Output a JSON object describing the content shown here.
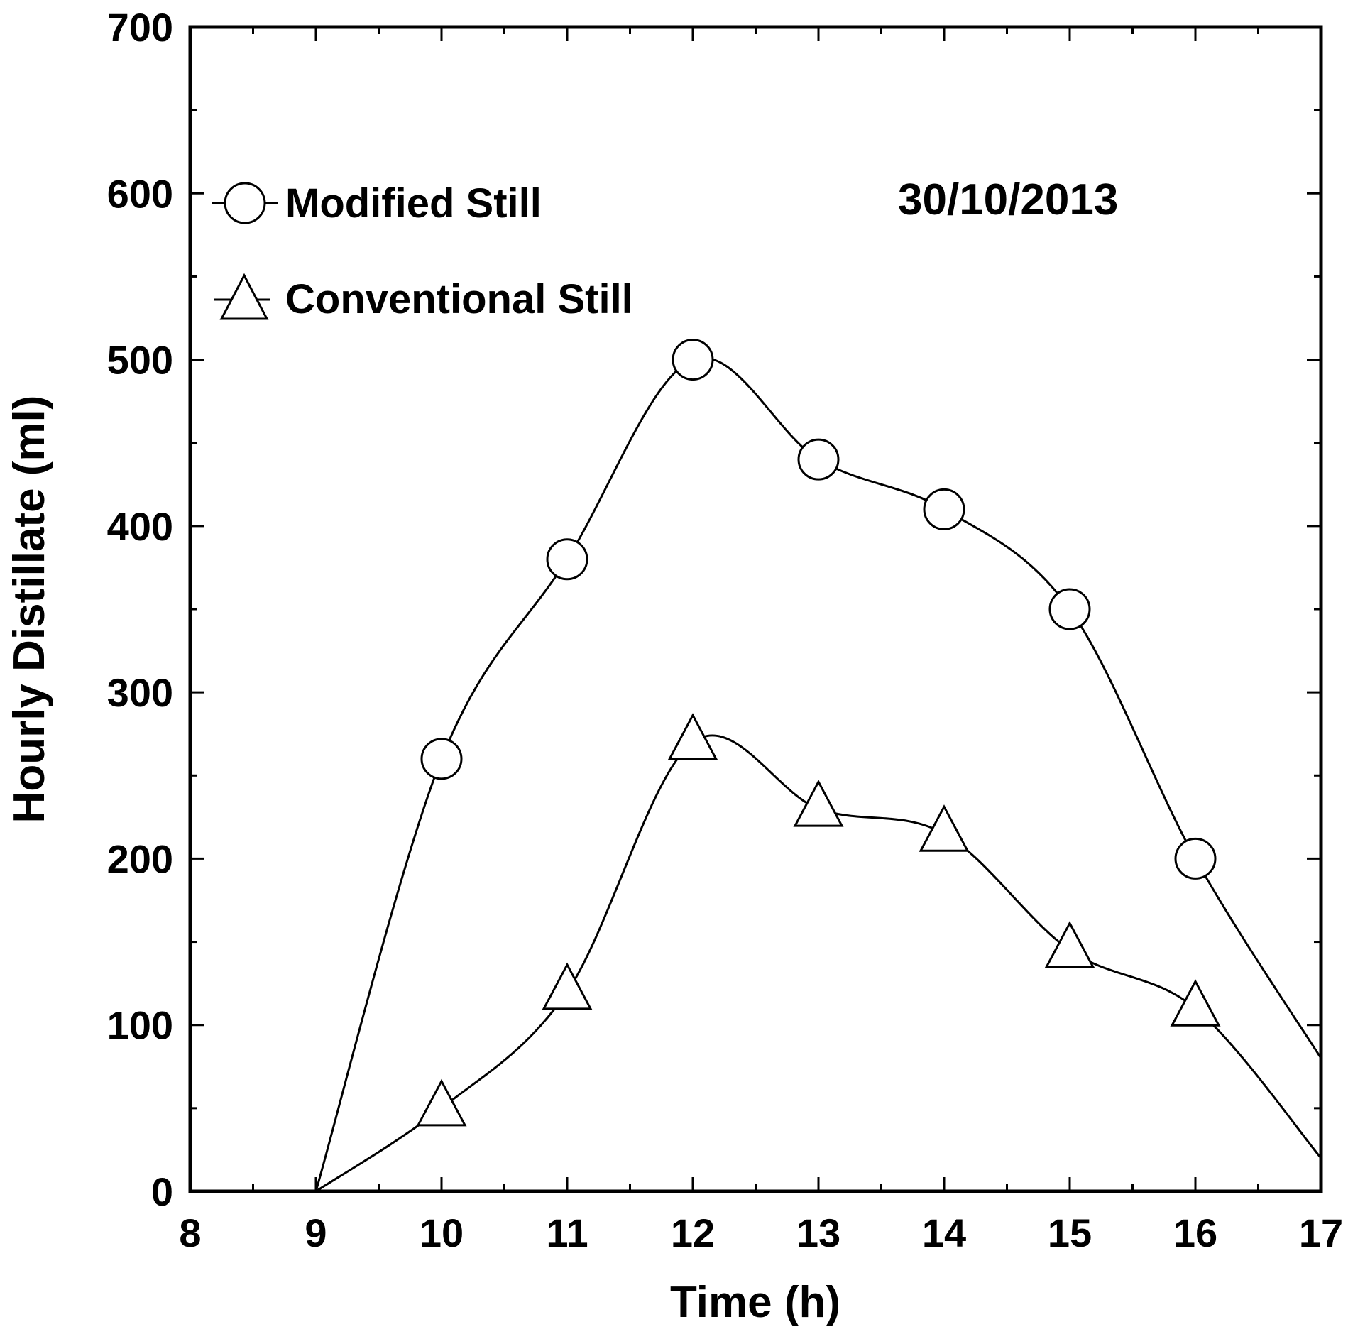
{
  "chart_data": {
    "type": "line",
    "title": "",
    "annotation": "30/10/2013",
    "xlabel": "Time (h)",
    "ylabel": "Hourly Distillate (ml)",
    "xlim": [
      8,
      17
    ],
    "ylim": [
      0,
      700
    ],
    "x_ticks": [
      8,
      9,
      10,
      11,
      12,
      13,
      14,
      15,
      16,
      17
    ],
    "y_ticks": [
      0,
      100,
      200,
      300,
      400,
      500,
      600,
      700
    ],
    "grid": false,
    "legend_position": "top-left",
    "series": [
      {
        "name": "Modified Still",
        "marker": "circle",
        "x": [
          9,
          10,
          11,
          12,
          13,
          14,
          15,
          16,
          17
        ],
        "values": [
          0,
          260,
          380,
          500,
          440,
          410,
          350,
          200,
          80
        ],
        "marked": [
          false,
          true,
          true,
          true,
          true,
          true,
          true,
          true,
          false
        ]
      },
      {
        "name": "Conventional Still",
        "marker": "triangle",
        "x": [
          9,
          10,
          11,
          12,
          13,
          14,
          15,
          16,
          17
        ],
        "values": [
          0,
          50,
          120,
          270,
          230,
          215,
          145,
          110,
          20
        ],
        "marked": [
          false,
          true,
          true,
          true,
          true,
          true,
          true,
          true,
          false
        ]
      }
    ]
  }
}
